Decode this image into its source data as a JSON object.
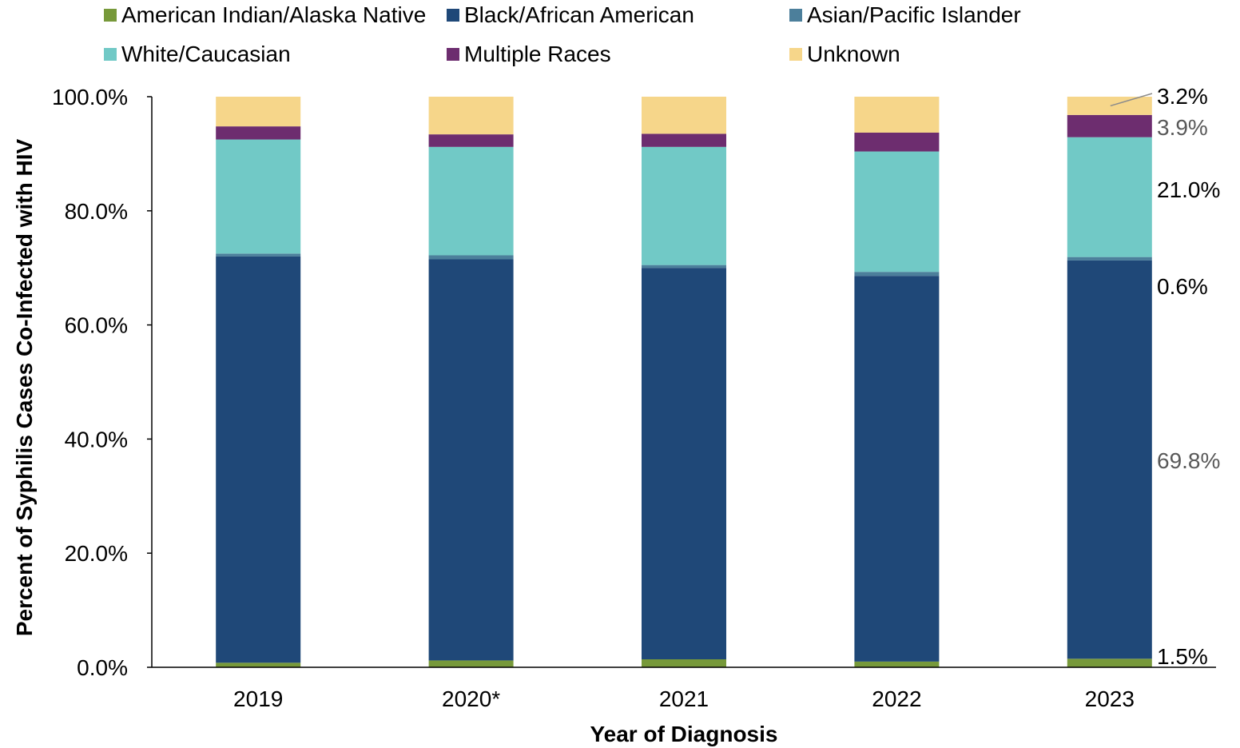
{
  "chart_data": {
    "type": "bar",
    "stacked": true,
    "categories": [
      "2019",
      "2020*",
      "2021",
      "2022",
      "2023"
    ],
    "xlabel": "Year of Diagnosis",
    "ylabel": "Percent  of Syphilis Cases Co-Infected with HIV",
    "ylim": [
      0,
      100
    ],
    "yticks": [
      "0.0%",
      "20.0%",
      "40.0%",
      "60.0%",
      "80.0%",
      "100.0%"
    ],
    "legend_position": "top",
    "grid": false,
    "series": [
      {
        "name": "American Indian/Alaska Native",
        "color": "#77993a",
        "values": [
          0.8,
          1.2,
          1.4,
          1.0,
          1.5
        ]
      },
      {
        "name": "Black/African American",
        "color": "#1f4878",
        "values": [
          71.2,
          70.3,
          68.6,
          67.6,
          69.8
        ]
      },
      {
        "name": "Asian/Pacific Islander",
        "color": "#4c7f9b",
        "values": [
          0.5,
          0.7,
          0.5,
          0.7,
          0.6
        ]
      },
      {
        "name": "White/Caucasian",
        "color": "#71c9c6",
        "values": [
          20.0,
          19.0,
          20.7,
          21.1,
          21.0
        ]
      },
      {
        "name": "Multiple Races",
        "color": "#6d2d6f",
        "values": [
          2.3,
          2.2,
          2.3,
          3.3,
          3.9
        ]
      },
      {
        "name": "Unknown",
        "color": "#f6d68a",
        "values": [
          5.2,
          6.6,
          6.5,
          6.3,
          3.2
        ]
      }
    ],
    "annotations": [
      {
        "label": "1.5%",
        "series": 0,
        "category": 4,
        "color": "#000000"
      },
      {
        "label": "69.8%",
        "series": 1,
        "category": 4,
        "color": "#595959"
      },
      {
        "label": "0.6%",
        "series": 2,
        "category": 4,
        "color": "#000000"
      },
      {
        "label": "21.0%",
        "series": 3,
        "category": 4,
        "color": "#000000"
      },
      {
        "label": "3.9%",
        "series": 4,
        "category": 4,
        "color": "#595959"
      },
      {
        "label": "3.2%",
        "series": 5,
        "category": 4,
        "color": "#000000"
      }
    ]
  }
}
